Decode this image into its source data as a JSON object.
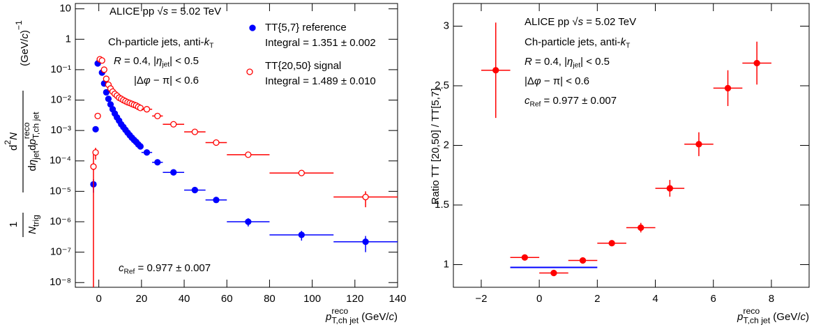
{
  "chart_data": [
    {
      "type": "scatter",
      "ylog": true,
      "xlabel": [
        {
          "it": "p"
        },
        {
          "sup": "reco",
          "sub": "T,ch jet"
        },
        " (GeV/",
        {
          "it": "c"
        },
        ")"
      ],
      "ylabel": {
        "num1": [
          "1"
        ],
        "den1": [
          {
            "it": "N"
          },
          {
            "sub": "trig"
          }
        ],
        "num2": [
          "d",
          {
            "sup": "2"
          },
          {
            "it": "N"
          }
        ],
        "den2": [
          "d",
          {
            "it": "η"
          },
          {
            "sub": "jet"
          },
          "d",
          {
            "it": "p"
          },
          {
            "sup": "reco",
            "sub": "T,ch jet"
          }
        ],
        "unit": [
          "(GeV/",
          {
            "it": "c"
          },
          ")",
          {
            "sup": "−1"
          }
        ]
      },
      "xlim": [
        -11,
        140
      ],
      "xticks": [
        0,
        20,
        40,
        60,
        80,
        100,
        120,
        140
      ],
      "ylim": [
        7e-09,
        15
      ],
      "yticks": [
        {
          "value": 1e-08,
          "label": "10⁻⁸"
        },
        {
          "value": 1e-07,
          "label": "10⁻⁷"
        },
        {
          "value": 1e-06,
          "label": "10⁻⁶"
        },
        {
          "value": 1e-05,
          "label": "10⁻⁵"
        },
        {
          "value": 0.0001,
          "label": "10⁻⁴"
        },
        {
          "value": 0.001,
          "label": "10⁻³"
        },
        {
          "value": 0.01,
          "label": "10⁻²"
        },
        {
          "value": 0.1,
          "label": "10⁻¹"
        },
        1,
        10
      ],
      "x": [
        -2.5,
        -1.5,
        -0.5,
        0.5,
        1.5,
        2.5,
        3.5,
        4.5,
        5.5,
        6.5,
        7.5,
        8.5,
        9.5,
        10.5,
        11.5,
        12.5,
        13.5,
        14.5,
        15.5,
        16.5,
        17.5,
        18.5,
        19.5,
        22.5,
        27.5,
        35,
        45,
        55,
        70,
        95,
        125
      ],
      "xerr": [
        0.5,
        0.5,
        0.5,
        0.5,
        0.5,
        0.5,
        0.5,
        0.5,
        0.5,
        0.5,
        0.5,
        0.5,
        0.5,
        0.5,
        0.5,
        0.5,
        0.5,
        0.5,
        0.5,
        0.5,
        0.5,
        0.5,
        0.5,
        2.5,
        2.5,
        5,
        5,
        5,
        10,
        15,
        15
      ],
      "series": [
        {
          "name": "TT{5,7} reference",
          "legend_detail": "Integral = 1.351 ± 0.002",
          "color": "#0000ff",
          "marker": "filled",
          "values": [
            1.7e-05,
            0.0011,
            0.16,
            0.2,
            0.08,
            0.035,
            0.018,
            0.011,
            0.0072,
            0.005,
            0.0036,
            0.0027,
            0.0021,
            0.0016,
            0.0013,
            0.00105,
            0.00085,
            0.0007,
            0.00058,
            0.00049,
            0.00042,
            0.00035,
            0.0003,
            0.00019,
            9e-05,
            4.2e-05,
            1.1e-05,
            5.2e-06,
            1e-06,
            3.7e-07,
            2.2e-07
          ],
          "yerr": [
            8e-06,
            0,
            0,
            0,
            0,
            0,
            0,
            0,
            0,
            0,
            0,
            0,
            0,
            0,
            0,
            0,
            0,
            0,
            0,
            0,
            0,
            0,
            0,
            0,
            0,
            0,
            1e-06,
            5e-07,
            3e-07,
            1.3e-07,
            1.2e-07
          ]
        },
        {
          "name": "TT{20,50} signal",
          "legend_detail": "Integral = 1.489 ± 0.010",
          "color": "#ff0000",
          "marker": "open",
          "values": [
            6.5e-05,
            0.00019,
            0.003,
            0.22,
            0.2,
            0.1,
            0.05,
            0.032,
            0.024,
            0.019,
            0.016,
            0.014,
            0.012,
            0.011,
            0.01,
            0.0092,
            0.0085,
            0.008,
            0.0075,
            0.007,
            0.0066,
            0.006,
            0.0055,
            0.005,
            0.003,
            0.0016,
            0.0009,
            0.0004,
            0.00016,
            4e-05,
            6.5e-06
          ],
          "yerr": [
            0.0001,
            8e-05,
            0,
            0,
            0,
            0,
            0,
            0,
            0,
            0,
            0,
            0,
            0,
            0,
            0,
            0,
            0,
            0,
            0,
            0,
            0,
            0,
            0,
            0,
            0,
            0,
            0,
            0,
            1e-05,
            5e-06,
            3.5e-06
          ]
        }
      ],
      "annotations": [
        [
          "ALICE pp √",
          {
            "it": "s"
          },
          " = 5.02 TeV"
        ],
        [
          "Ch-particle jets, anti-",
          {
            "it": "k"
          },
          {
            "sub": "T"
          }
        ],
        [
          {
            "it": "R"
          },
          " = 0.4, |",
          {
            "it": "η"
          },
          {
            "sub": "jet"
          },
          "| < 0.5"
        ],
        [
          "|Δ",
          {
            "it": "φ"
          },
          " − π| < 0.6"
        ],
        [
          {
            "it": "c"
          },
          {
            "sub": "Ref"
          },
          " = 0.977 ± 0.007"
        ]
      ]
    },
    {
      "type": "scatter",
      "ylog": false,
      "xlabel": [
        {
          "it": "p"
        },
        {
          "sup": "reco",
          "sub": "T,ch jet"
        },
        " (GeV/",
        {
          "it": "c"
        },
        ")"
      ],
      "ylabel": "Ratio TT [20,50] / TT[5,7]",
      "xlim": [
        -2.96,
        9.3
      ],
      "xticks": [
        {
          "value": -2,
          "label": "−2"
        },
        0,
        2,
        4,
        6,
        8
      ],
      "ylim": [
        0.81,
        3.19
      ],
      "yticks": [
        1,
        1.5,
        2,
        2.5,
        3
      ],
      "x": [
        -1.5,
        -0.5,
        0.5,
        1.5,
        2.5,
        3.5,
        4.5,
        5.5,
        6.5,
        7.5
      ],
      "xerr": [
        0.5,
        0.5,
        0.5,
        0.5,
        0.5,
        0.5,
        0.5,
        0.5,
        0.5,
        0.5
      ],
      "series": [
        {
          "color": "#ff0000",
          "marker": "filled",
          "values": [
            2.63,
            1.06,
            0.93,
            1.035,
            1.18,
            1.31,
            1.64,
            2.01,
            2.48,
            2.69
          ],
          "yerr": [
            0.4,
            0.01,
            0.01,
            0.01,
            0.02,
            0.04,
            0.07,
            0.1,
            0.15,
            0.18
          ]
        }
      ],
      "reference_line": {
        "value": 0.977,
        "x": [
          -1,
          2
        ],
        "color": "#0000ff"
      },
      "annotations": [
        [
          "ALICE pp √",
          {
            "it": "s"
          },
          " = 5.02 TeV"
        ],
        [
          "Ch-particle jets, anti-",
          {
            "it": "k"
          },
          {
            "sub": "T"
          }
        ],
        [
          {
            "it": "R"
          },
          " = 0.4, |",
          {
            "it": "η"
          },
          {
            "sub": "jet"
          },
          "| < 0.5"
        ],
        [
          "|Δ",
          {
            "it": "φ"
          },
          " − π| < 0.6"
        ],
        [
          {
            "it": "c"
          },
          {
            "sub": "Ref"
          },
          " = 0.977 ± 0.007"
        ]
      ]
    }
  ]
}
